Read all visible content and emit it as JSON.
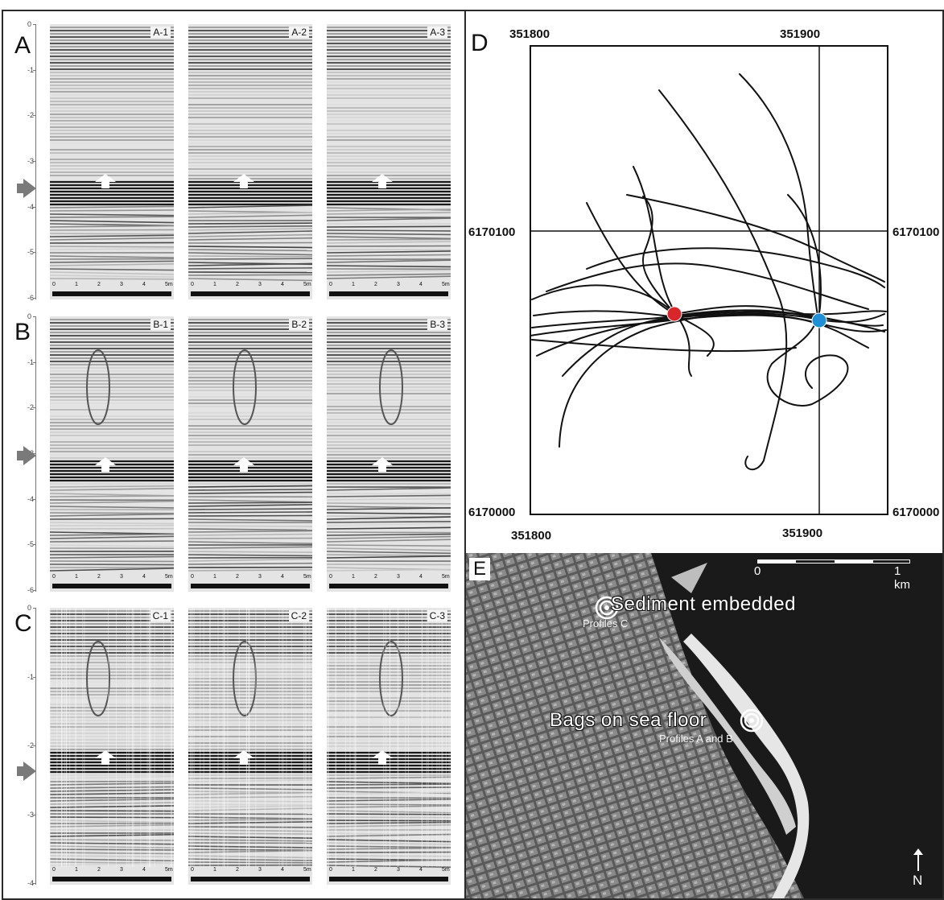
{
  "panels": {
    "A": {
      "letter": "A",
      "depth_ticks": [
        "0",
        "-1",
        "-2",
        "-3",
        "-4",
        "-5",
        "-6"
      ],
      "profiles": [
        "A-1",
        "A-2",
        "A-3"
      ],
      "scale_ticks": [
        "0",
        "1",
        "2",
        "3",
        "4",
        "5m"
      ]
    },
    "B": {
      "letter": "B",
      "depth_ticks": [
        "0",
        "-1",
        "-2",
        "-3",
        "-4",
        "-5",
        "-6"
      ],
      "profiles": [
        "B-1",
        "B-2",
        "B-3"
      ],
      "scale_ticks": [
        "0",
        "1",
        "2",
        "3",
        "4",
        "5m"
      ]
    },
    "C": {
      "letter": "C",
      "depth_ticks": [
        "0",
        "-1",
        "-2",
        "-3",
        "-4"
      ],
      "profiles": [
        "C-1",
        "C-2",
        "C-3"
      ],
      "scale_ticks": [
        "0",
        "1",
        "2",
        "3",
        "4",
        "5m"
      ]
    }
  },
  "map_d": {
    "letter": "D",
    "easting_top": [
      "351800",
      "351900"
    ],
    "easting_bottom": [
      "351800",
      "351900"
    ],
    "northing_left": [
      "6170100",
      "6170000"
    ],
    "northing_right": [
      "6170100",
      "6170000"
    ],
    "colors": {
      "red_marker": "#d8262a",
      "blue_marker": "#1f8fd6",
      "track": "#111111"
    },
    "markers": [
      {
        "name": "red-marker",
        "easting": 351838,
        "northing": 6170068
      },
      {
        "name": "blue-marker",
        "easting": 351900,
        "northing": 6170065
      }
    ]
  },
  "map_e": {
    "letter": "E",
    "scale_left": "0",
    "scale_right": "1 km",
    "label_sediment": "Sediment embedded",
    "label_profiles_c": "Profiles C",
    "label_bags": "Bags on sea floor",
    "label_profiles_ab": "Profiles A and B",
    "north": "N"
  }
}
